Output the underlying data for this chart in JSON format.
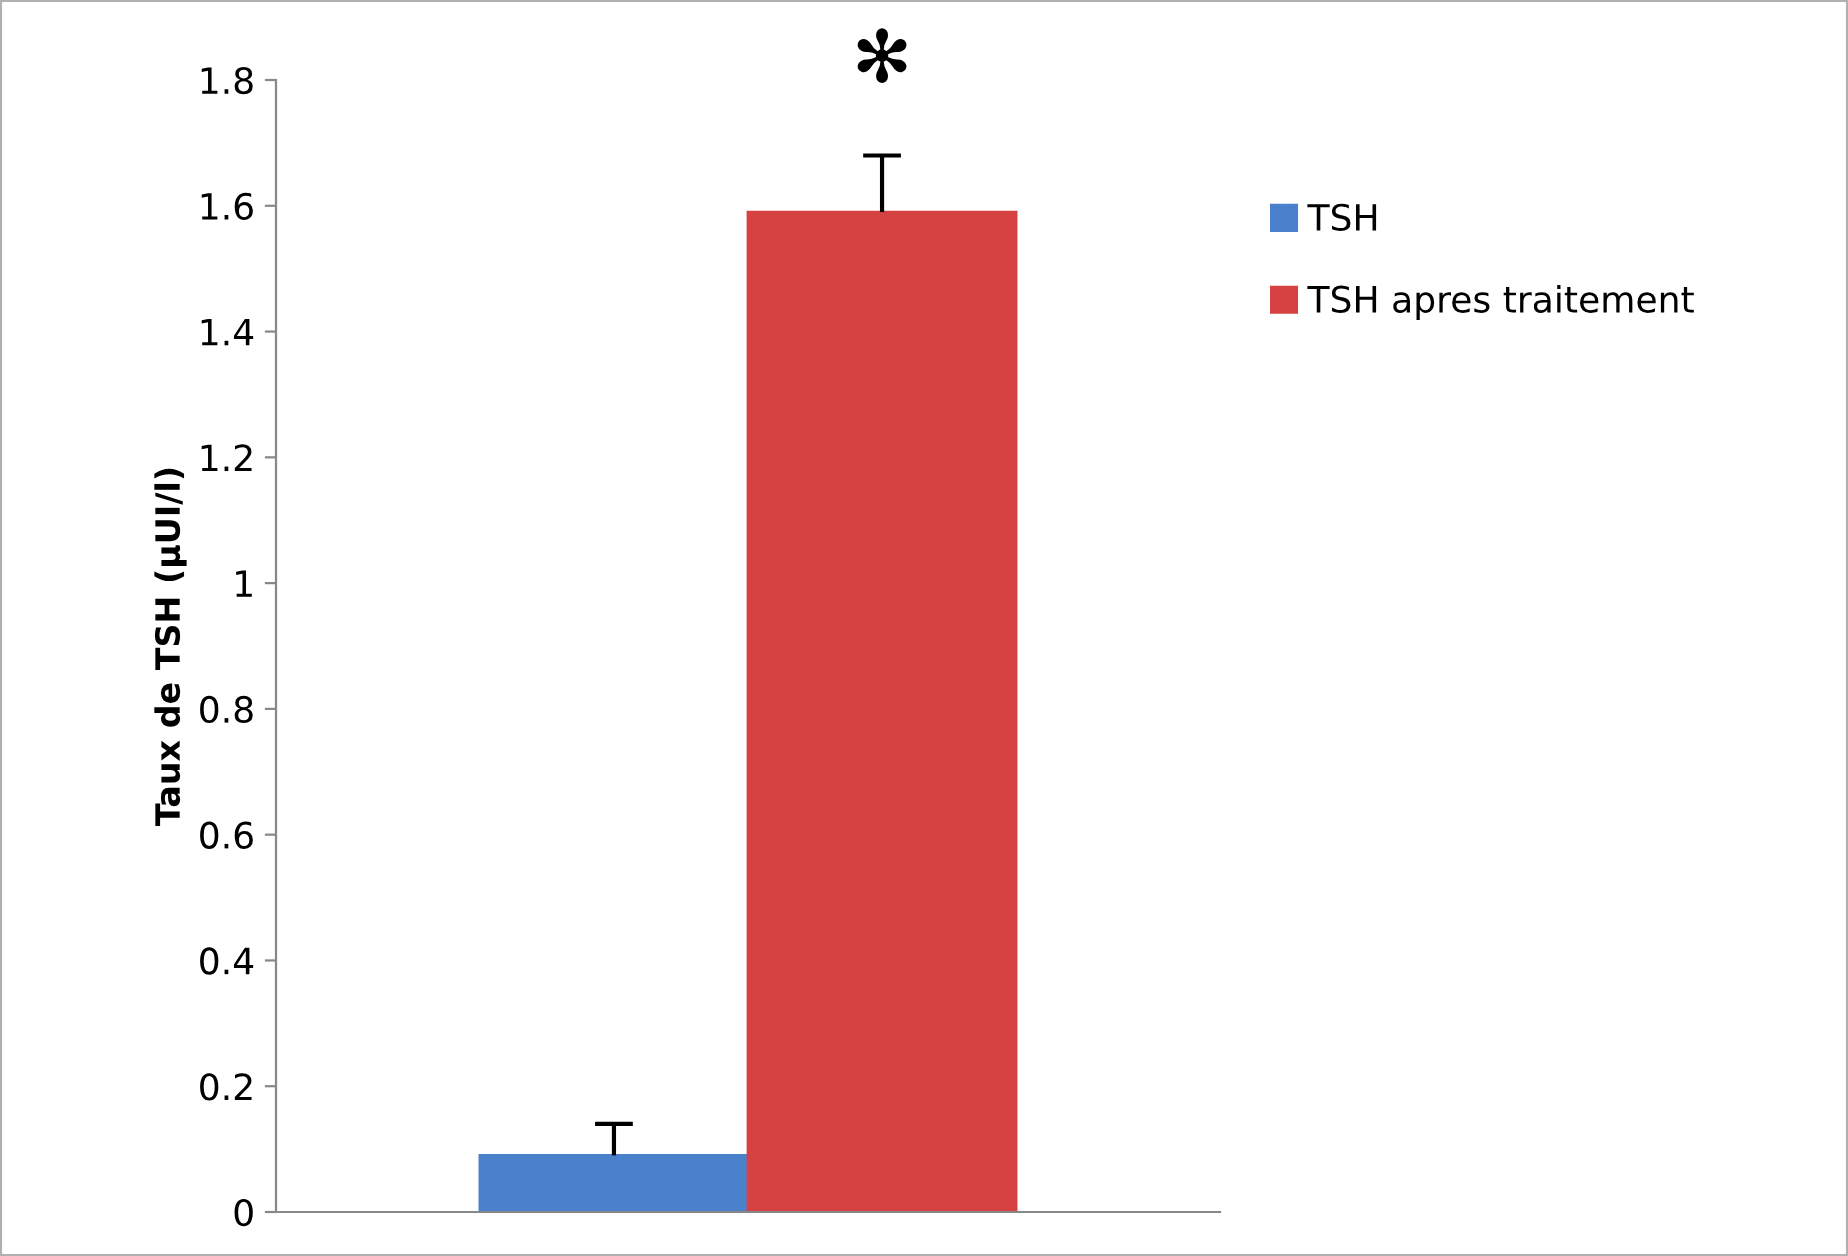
{
  "chart_data": {
    "type": "bar",
    "ylabel": "Taux de TSH (µUI/l)",
    "categories": [
      null
    ],
    "series": [
      {
        "name": "TSH",
        "color": "#4a80cc",
        "values": [
          0.09
        ],
        "errors": [
          [
            0.09,
            0.14
          ]
        ]
      },
      {
        "name": "TSH apres traitement",
        "color": "#d64242",
        "values": [
          1.59
        ],
        "errors": [
          [
            1.59,
            1.68
          ]
        ]
      }
    ],
    "ylim": [
      0,
      1.8
    ],
    "yticks": [
      0,
      0.2,
      0.4,
      0.6,
      0.8,
      1,
      1.2,
      1.4,
      1.6,
      1.8
    ],
    "annotations": [
      "✻"
    ],
    "grid": false,
    "legend": "right"
  }
}
